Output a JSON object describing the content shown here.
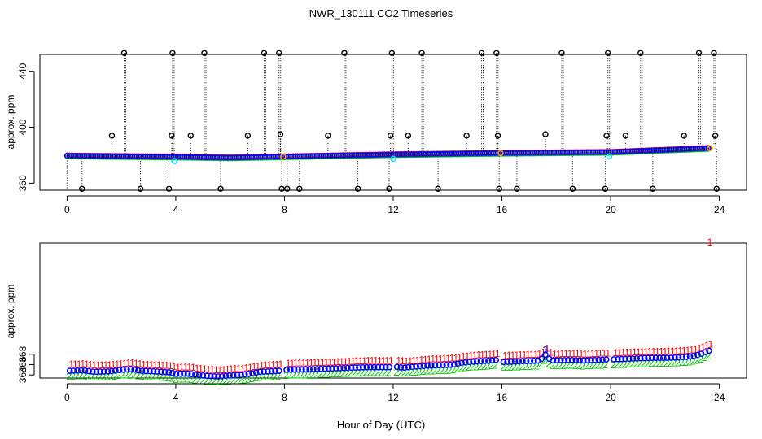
{
  "title": "NWR_130111  CO2 Timeseries",
  "xlabel": "Hour of Day (UTC)",
  "colors": {
    "ch1": "#ff0000",
    "ch2": "#00cc00",
    "ch3": "#0000ff",
    "mean": "#0000ff",
    "alt1": "#00e5ff",
    "alt2": "#ffa500"
  },
  "chart_data": [
    {
      "type": "scatter",
      "title": "",
      "ylabel": "approx. ppm",
      "xlim": [
        -1,
        25
      ],
      "ylim": [
        355,
        452
      ],
      "xticks": [
        0,
        4,
        8,
        12,
        16,
        20,
        24
      ],
      "yticks": [
        360,
        400,
        440
      ],
      "baseline_series": [
        [
          0,
          379.6
        ],
        [
          4,
          378.8
        ],
        [
          6,
          378.2
        ],
        [
          8,
          379.0
        ],
        [
          12,
          380.5
        ],
        [
          16,
          381.5
        ],
        [
          20,
          382.2
        ],
        [
          23.6,
          385.0
        ]
      ],
      "outlier_hours": [
        2.1,
        3.88,
        5.05,
        7.25,
        7.8,
        10.2,
        11.95,
        13.05,
        15.25,
        15.8,
        18.2,
        19.9,
        21.1,
        23.25,
        23.8,
        1.65,
        3.85,
        4.55,
        6.65,
        7.85,
        9.6,
        11.9,
        12.55,
        14.7,
        15.85,
        17.6,
        19.85,
        20.55,
        22.7,
        23.85,
        0.55,
        2.7,
        3.75,
        5.65,
        7.9,
        8.55,
        10.7,
        11.85,
        13.65,
        15.9,
        16.55,
        18.6,
        19.8,
        21.55,
        23.9,
        8.1
      ],
      "outlier_values": [
        453,
        453,
        453,
        453,
        453,
        453,
        453,
        453,
        453,
        453,
        453,
        453,
        453,
        453,
        453,
        394,
        394,
        394,
        394,
        395,
        394,
        394,
        394,
        394,
        394,
        395,
        394,
        394,
        394,
        394,
        356,
        356,
        356,
        356,
        356,
        356,
        356,
        356,
        356,
        356,
        356,
        356,
        356,
        356,
        356,
        356
      ]
    },
    {
      "type": "scatter",
      "title": "",
      "ylabel": "approx. ppm",
      "xlim": [
        -1,
        25
      ],
      "ylim": [
        363.4,
        389.5
      ],
      "xticks": [
        0,
        4,
        8,
        12,
        16,
        20,
        24
      ],
      "yticks": [
        364,
        366,
        368
      ],
      "gaps": [
        [
          7.9,
          8.05
        ],
        [
          11.95,
          12.05
        ],
        [
          15.85,
          16.0
        ],
        [
          19.9,
          20.0
        ],
        [
          23.7,
          25
        ]
      ],
      "mean_series": [
        [
          0.1,
          364.8
        ],
        [
          0.6,
          364.9
        ],
        [
          1.0,
          364.6
        ],
        [
          1.6,
          364.7
        ],
        [
          2.0,
          365.0
        ],
        [
          2.4,
          365.1
        ],
        [
          2.7,
          364.8
        ],
        [
          3.2,
          364.7
        ],
        [
          3.8,
          364.5
        ],
        [
          4.0,
          364.2
        ],
        [
          4.4,
          364.3
        ],
        [
          4.8,
          364.0
        ],
        [
          5.2,
          363.8
        ],
        [
          5.6,
          363.7
        ],
        [
          6.0,
          363.9
        ],
        [
          6.4,
          364.0
        ],
        [
          6.8,
          364.3
        ],
        [
          7.1,
          364.6
        ],
        [
          7.8,
          364.8
        ],
        [
          8.1,
          365.0
        ],
        [
          9.0,
          365.1
        ],
        [
          10.0,
          365.3
        ],
        [
          11.0,
          365.5
        ],
        [
          11.9,
          365.5
        ],
        [
          12.05,
          365.6
        ],
        [
          12.4,
          365.4
        ],
        [
          12.8,
          365.6
        ],
        [
          13.3,
          365.8
        ],
        [
          13.8,
          365.9
        ],
        [
          14.2,
          366.0
        ],
        [
          14.6,
          366.4
        ],
        [
          15.0,
          366.6
        ],
        [
          15.4,
          366.7
        ],
        [
          15.8,
          366.9
        ],
        [
          16.05,
          366.5
        ],
        [
          16.5,
          366.6
        ],
        [
          17.0,
          366.7
        ],
        [
          17.4,
          366.8
        ],
        [
          17.6,
          367.9
        ],
        [
          17.8,
          366.8
        ],
        [
          18.5,
          366.9
        ],
        [
          19.0,
          366.8
        ],
        [
          19.5,
          366.9
        ],
        [
          19.9,
          367.0
        ],
        [
          20.05,
          367.0
        ],
        [
          20.5,
          367.1
        ],
        [
          21.0,
          367.2
        ],
        [
          21.5,
          367.3
        ],
        [
          22.0,
          367.3
        ],
        [
          22.5,
          367.4
        ],
        [
          23.0,
          367.6
        ],
        [
          23.3,
          368.0
        ],
        [
          23.6,
          368.7
        ]
      ],
      "labels": [
        "1",
        "2",
        "3"
      ],
      "offsets_ppm": [
        0.3,
        -0.3,
        0.0
      ]
    }
  ]
}
